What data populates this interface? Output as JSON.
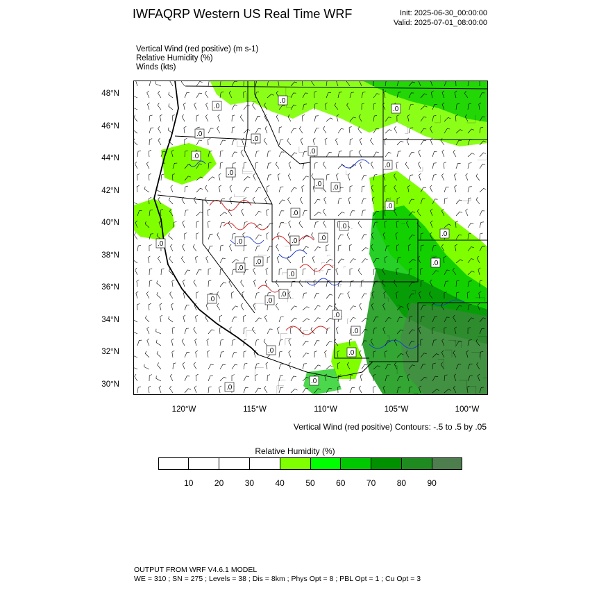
{
  "header": {
    "title": "IWFAQRP Western US Real Time WRF",
    "init": "Init: 2025-06-30_00:00:00",
    "valid": "Valid: 2025-07-01_08:00:00"
  },
  "fields": [
    "Vertical Wind (red positive)   (m s-1)",
    "Relative Humidity   (%)",
    "Winds   (kts)"
  ],
  "map": {
    "lat_labels": [
      "48°N",
      "46°N",
      "44°N",
      "42°N",
      "40°N",
      "38°N",
      "36°N",
      "34°N",
      "32°N",
      "30°N"
    ],
    "lon_labels": [
      "120°W",
      "115°W",
      "110°W",
      "105°W",
      "100°W"
    ],
    "colors": {
      "land": "#ffffff",
      "rh_40": "#7fff00",
      "rh_50": "#3ce63c",
      "rh_60": "#00c800",
      "rh_70": "#00a000",
      "rh_80": "#2d8b2d",
      "rh_90": "#4e7e4e",
      "updraft": "#d42020",
      "downdraft": "#2040d0",
      "boundaries": "#000000"
    },
    "contour_note": "Vertical Wind (red positive) Contours: -.5 to .5 by .05"
  },
  "colorbar": {
    "title": "Relative Humidity   (%)",
    "labels": [
      "10",
      "20",
      "30",
      "40",
      "50",
      "60",
      "70",
      "80",
      "90"
    ],
    "colors": [
      "#ffffff",
      "#ffffff",
      "#ffffff",
      "#ffffff",
      "#7fff00",
      "#00ff00",
      "#00c800",
      "#009000",
      "#1f8a1f",
      "#4e7e4e"
    ]
  },
  "footer": {
    "line1": "OUTPUT FROM WRF V4.6.1 MODEL",
    "line2": "WE = 310 ; SN = 275 ; Levels = 38 ; Dis = 8km ; Phys Opt = 8 ; PBL Opt = 1 ; Cu Opt = 3"
  }
}
